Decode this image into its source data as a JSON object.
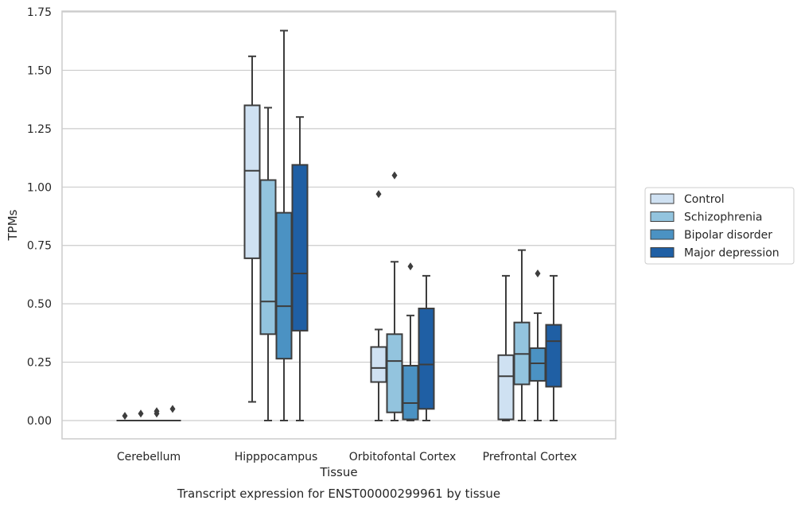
{
  "chart_data": {
    "type": "boxplot",
    "title": "",
    "xlabel": "Tissue",
    "ylabel": "TPMs",
    "caption": "Transcript expression for ENST00000299961 by tissue",
    "ylim": [
      -0.08,
      1.75
    ],
    "yticks": [
      0.0,
      0.25,
      0.5,
      0.75,
      1.0,
      1.25,
      1.5,
      1.75
    ],
    "ytick_labels": [
      "0.00",
      "0.25",
      "0.50",
      "0.75",
      "1.00",
      "1.25",
      "1.50",
      "1.75"
    ],
    "categories": [
      "Cerebellum",
      "Hipppocampus",
      "Orbitofontal Cortex",
      "Prefrontal Cortex"
    ],
    "grid": "horizontal",
    "legend_position": "right",
    "series": [
      {
        "name": "Control",
        "color": "#cfe1f2",
        "boxes": [
          {
            "whislo": 0.0,
            "q1": 0.0,
            "med": 0.0,
            "q3": 0.0,
            "whishi": 0.0,
            "fliers": [
              0.02
            ]
          },
          {
            "whislo": 0.08,
            "q1": 0.695,
            "med": 1.07,
            "q3": 1.35,
            "whishi": 1.56,
            "fliers": []
          },
          {
            "whislo": 0.0,
            "q1": 0.165,
            "med": 0.225,
            "q3": 0.315,
            "whishi": 0.39,
            "fliers": [
              0.97
            ]
          },
          {
            "whislo": 0.0,
            "q1": 0.005,
            "med": 0.19,
            "q3": 0.28,
            "whishi": 0.62,
            "fliers": []
          }
        ]
      },
      {
        "name": "Schizophrenia",
        "color": "#93c4de",
        "boxes": [
          {
            "whislo": 0.0,
            "q1": 0.0,
            "med": 0.0,
            "q3": 0.0,
            "whishi": 0.0,
            "fliers": [
              0.03
            ]
          },
          {
            "whislo": 0.0,
            "q1": 0.37,
            "med": 0.51,
            "q3": 1.03,
            "whishi": 1.34,
            "fliers": []
          },
          {
            "whislo": 0.0,
            "q1": 0.035,
            "med": 0.255,
            "q3": 0.37,
            "whishi": 0.68,
            "fliers": [
              1.05
            ]
          },
          {
            "whislo": 0.0,
            "q1": 0.155,
            "med": 0.285,
            "q3": 0.42,
            "whishi": 0.73,
            "fliers": []
          }
        ]
      },
      {
        "name": "Bipolar disorder",
        "color": "#4b92c3",
        "boxes": [
          {
            "whislo": 0.0,
            "q1": 0.0,
            "med": 0.0,
            "q3": 0.0,
            "whishi": 0.0,
            "fliers": [
              0.03,
              0.04
            ]
          },
          {
            "whislo": 0.0,
            "q1": 0.265,
            "med": 0.49,
            "q3": 0.89,
            "whishi": 1.67,
            "fliers": []
          },
          {
            "whislo": 0.0,
            "q1": 0.005,
            "med": 0.075,
            "q3": 0.235,
            "whishi": 0.45,
            "fliers": [
              0.66
            ]
          },
          {
            "whislo": 0.0,
            "q1": 0.17,
            "med": 0.245,
            "q3": 0.31,
            "whishi": 0.46,
            "fliers": [
              0.63
            ]
          }
        ]
      },
      {
        "name": "Major depression",
        "color": "#1f5fa4",
        "boxes": [
          {
            "whislo": 0.0,
            "q1": 0.0,
            "med": 0.0,
            "q3": 0.0,
            "whishi": 0.0,
            "fliers": [
              0.05
            ]
          },
          {
            "whislo": 0.0,
            "q1": 0.385,
            "med": 0.63,
            "q3": 1.095,
            "whishi": 1.3,
            "fliers": []
          },
          {
            "whislo": 0.0,
            "q1": 0.05,
            "med": 0.24,
            "q3": 0.48,
            "whishi": 0.62,
            "fliers": []
          },
          {
            "whislo": 0.0,
            "q1": 0.145,
            "med": 0.34,
            "q3": 0.41,
            "whishi": 0.62,
            "fliers": []
          }
        ]
      }
    ]
  }
}
